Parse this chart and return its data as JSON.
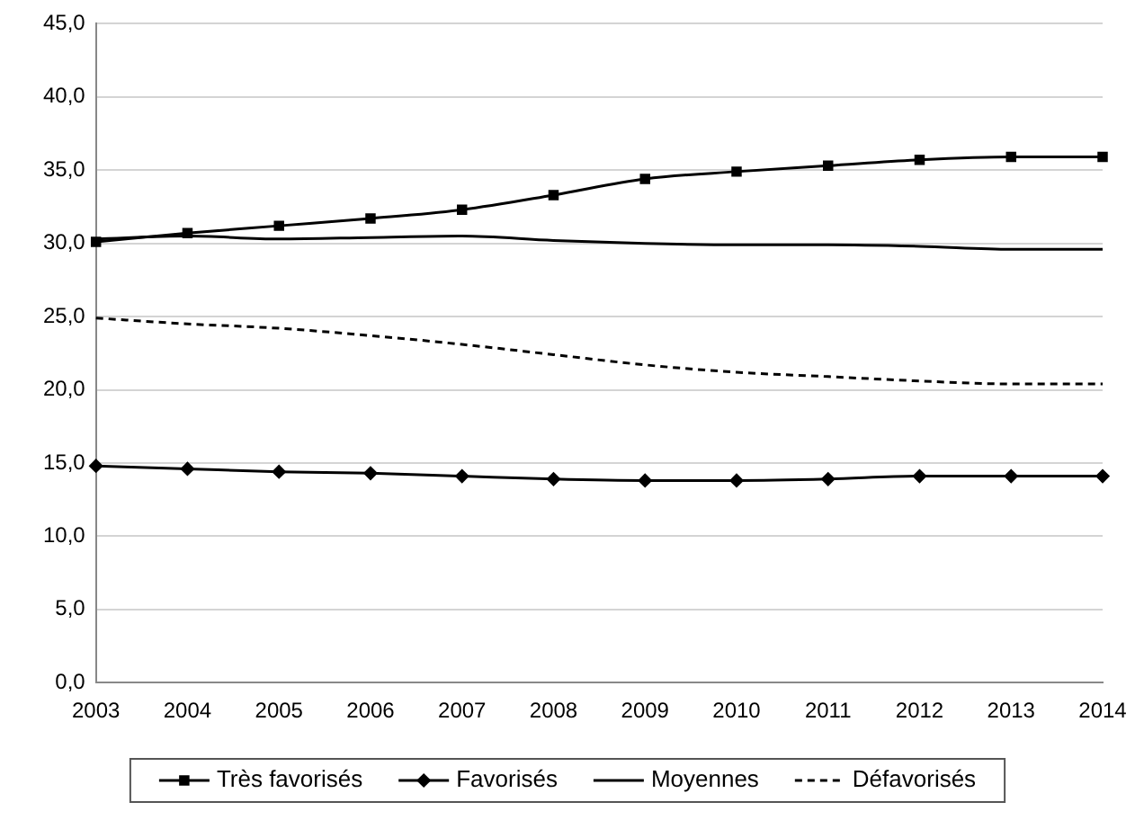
{
  "chart_data": {
    "type": "line",
    "categories": [
      "2003",
      "2004",
      "2005",
      "2006",
      "2007",
      "2008",
      "2009",
      "2010",
      "2011",
      "2012",
      "2013",
      "2014"
    ],
    "series": [
      {
        "name": "Très favorisés",
        "color": "#000000",
        "marker": "square",
        "line_style": "solid",
        "values": [
          30.1,
          30.7,
          31.2,
          31.7,
          32.3,
          33.3,
          34.4,
          34.9,
          35.3,
          35.7,
          35.9,
          35.9
        ]
      },
      {
        "name": "Favorisés",
        "color": "#000000",
        "marker": "diamond",
        "line_style": "solid",
        "values": [
          14.8,
          14.6,
          14.4,
          14.3,
          14.1,
          13.9,
          13.8,
          13.8,
          13.9,
          14.1,
          14.1,
          14.1
        ]
      },
      {
        "name": "Moyennes",
        "color": "#000000",
        "marker": "none",
        "line_style": "solid",
        "values": [
          30.3,
          30.5,
          30.3,
          30.4,
          30.5,
          30.2,
          30.0,
          29.9,
          29.9,
          29.8,
          29.6,
          29.6
        ]
      },
      {
        "name": "Défavorisés",
        "color": "#000000",
        "marker": "none",
        "line_style": "dashed",
        "values": [
          24.9,
          24.5,
          24.2,
          23.7,
          23.1,
          22.4,
          21.7,
          21.2,
          20.9,
          20.6,
          20.4,
          20.4
        ]
      }
    ],
    "ylim": [
      0,
      45
    ],
    "yticks": [
      {
        "value": 0,
        "label": "0,0"
      },
      {
        "value": 5,
        "label": "5,0"
      },
      {
        "value": 10,
        "label": "10,0"
      },
      {
        "value": 15,
        "label": "15,0"
      },
      {
        "value": 20,
        "label": "20,0"
      },
      {
        "value": 25,
        "label": "25,0"
      },
      {
        "value": 30,
        "label": "30,0"
      },
      {
        "value": 35,
        "label": "35,0"
      },
      {
        "value": 40,
        "label": "40,0"
      },
      {
        "value": 45,
        "label": "45,0"
      }
    ],
    "grid": "y",
    "legend": "bottom"
  }
}
